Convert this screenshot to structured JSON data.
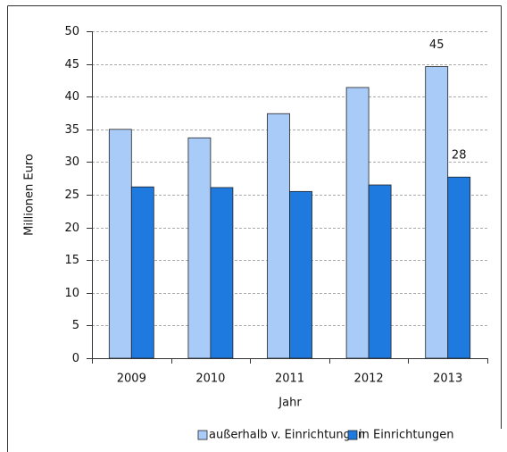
{
  "chart_data": {
    "type": "bar",
    "categories": [
      "2009",
      "2010",
      "2011",
      "2012",
      "2013"
    ],
    "series": [
      {
        "name": "außerhalb v. Einrichtungen",
        "color": "#a9cbf7",
        "values": [
          35,
          33.7,
          37.4,
          41.4,
          44.6
        ],
        "value_labels": [
          null,
          null,
          null,
          null,
          "45"
        ]
      },
      {
        "name": "in Einrichtungen",
        "color": "#1f7ae0",
        "values": [
          26.2,
          26.1,
          25.5,
          26.5,
          27.7
        ],
        "value_labels": [
          null,
          null,
          null,
          null,
          "28"
        ]
      }
    ],
    "xlabel": "Jahr",
    "ylabel": "Millionen Euro",
    "ylim": [
      0,
      50
    ],
    "yticks": [
      0,
      5,
      10,
      15,
      20,
      25,
      30,
      35,
      40,
      45,
      50
    ],
    "grid": true,
    "legend": "bottom"
  }
}
